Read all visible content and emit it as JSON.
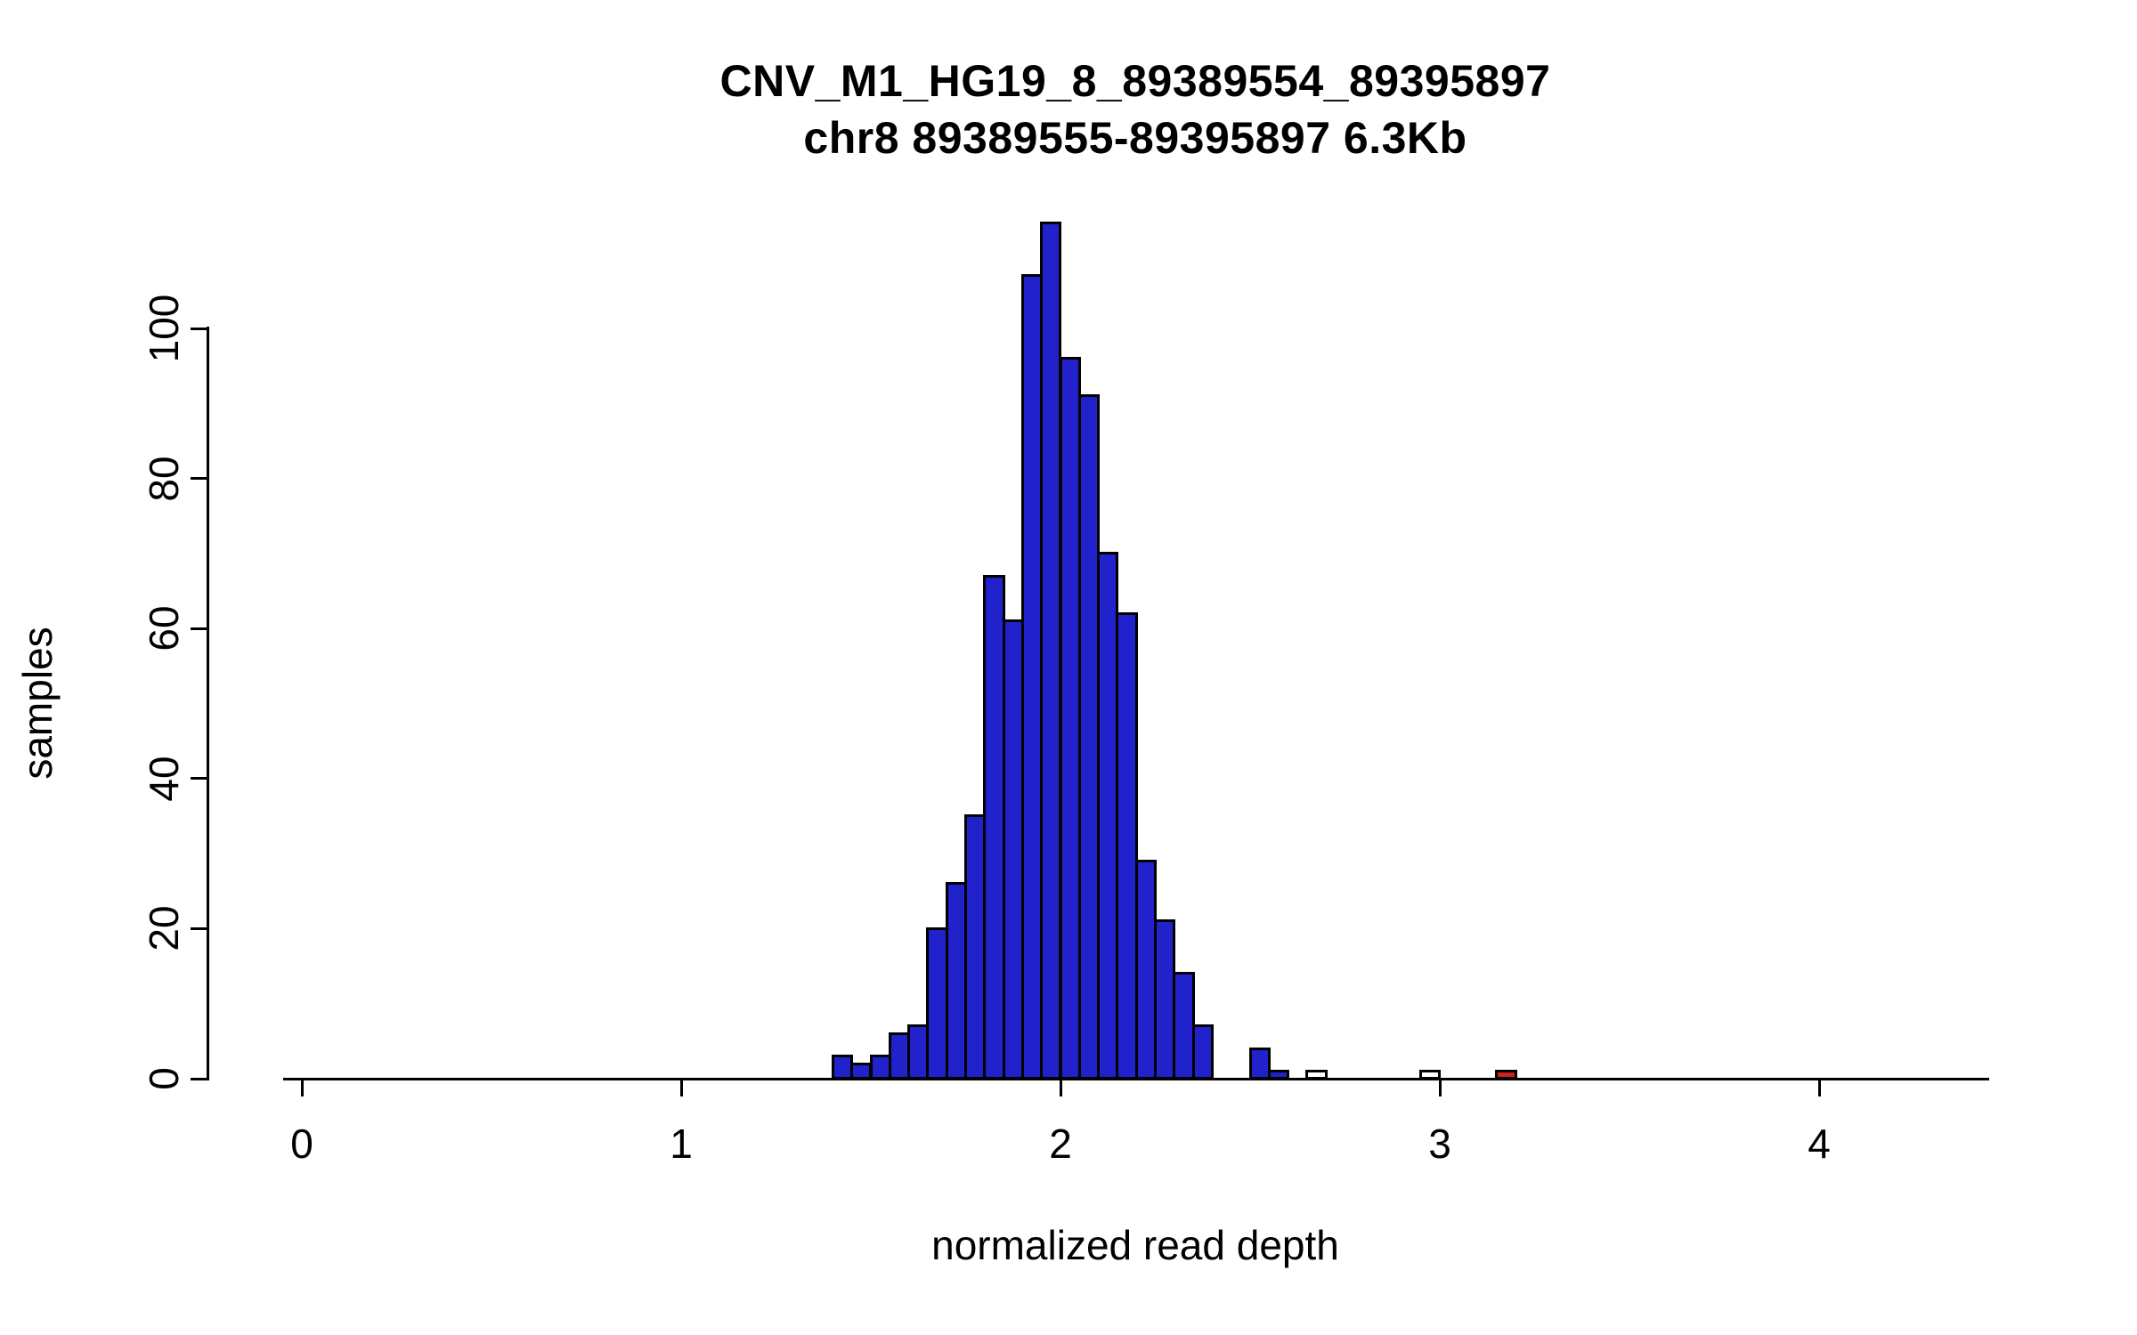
{
  "page": {
    "background": "#ffffff"
  },
  "chart_data": {
    "type": "bar",
    "subtype": "histogram",
    "title": "CNV_M1_HG19_8_89389554_89395897",
    "subtitle": "chr8 89389555-89395897 6.3Kb",
    "xlabel": "normalized read depth",
    "ylabel": "samples",
    "xlim": [
      -0.05,
      4.45
    ],
    "ylim": [
      0,
      114
    ],
    "x_ticks": [
      0,
      1,
      2,
      3,
      4
    ],
    "y_ticks": [
      0,
      20,
      40,
      60,
      80,
      100
    ],
    "grid": false,
    "legend": false,
    "bin_width": 0.05,
    "bars": [
      {
        "x": 1.4,
        "count": 3,
        "color": "blue"
      },
      {
        "x": 1.45,
        "count": 2,
        "color": "blue"
      },
      {
        "x": 1.5,
        "count": 3,
        "color": "blue"
      },
      {
        "x": 1.55,
        "count": 6,
        "color": "blue"
      },
      {
        "x": 1.6,
        "count": 7,
        "color": "blue"
      },
      {
        "x": 1.65,
        "count": 20,
        "color": "blue"
      },
      {
        "x": 1.7,
        "count": 26,
        "color": "blue"
      },
      {
        "x": 1.75,
        "count": 35,
        "color": "blue"
      },
      {
        "x": 1.8,
        "count": 67,
        "color": "blue"
      },
      {
        "x": 1.85,
        "count": 61,
        "color": "blue"
      },
      {
        "x": 1.9,
        "count": 107,
        "color": "blue"
      },
      {
        "x": 1.95,
        "count": 114,
        "color": "blue"
      },
      {
        "x": 2.0,
        "count": 96,
        "color": "blue"
      },
      {
        "x": 2.05,
        "count": 91,
        "color": "blue"
      },
      {
        "x": 2.1,
        "count": 70,
        "color": "blue"
      },
      {
        "x": 2.15,
        "count": 62,
        "color": "blue"
      },
      {
        "x": 2.2,
        "count": 29,
        "color": "blue"
      },
      {
        "x": 2.25,
        "count": 21,
        "color": "blue"
      },
      {
        "x": 2.3,
        "count": 14,
        "color": "blue"
      },
      {
        "x": 2.35,
        "count": 7,
        "color": "blue"
      },
      {
        "x": 2.5,
        "count": 4,
        "color": "blue"
      },
      {
        "x": 2.55,
        "count": 1,
        "color": "blue"
      },
      {
        "x": 2.65,
        "count": 1,
        "color": "white"
      },
      {
        "x": 2.95,
        "count": 1,
        "color": "white"
      },
      {
        "x": 3.15,
        "count": 1,
        "color": "red"
      }
    ],
    "colors": {
      "blue": "#2222cc",
      "white": "#ffffff",
      "red": "#cc2222",
      "axis": "#000000",
      "bar_border": "#000000"
    }
  }
}
